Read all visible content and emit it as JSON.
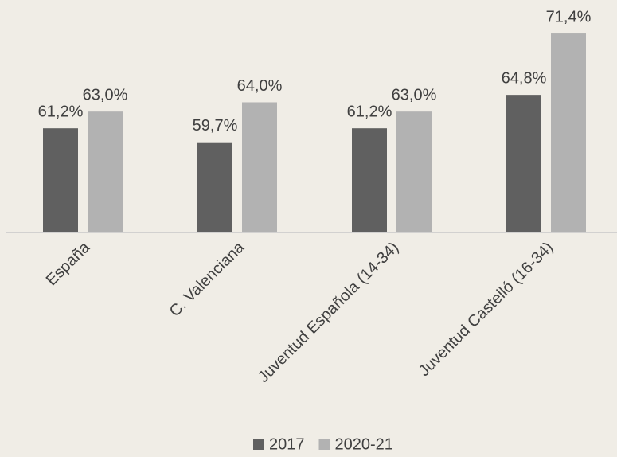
{
  "chart_data": {
    "type": "bar",
    "categories": [
      "España",
      "C. Valenciana",
      "Juventud Española (14-34)",
      "Juventud Castelló (16-34)"
    ],
    "series": [
      {
        "name": "2017",
        "color": "#606060",
        "values": [
          61.2,
          59.7,
          61.2,
          64.8
        ],
        "value_labels": [
          "61,2%",
          "59,7%",
          "61,2%",
          "64,8%"
        ]
      },
      {
        "name": "2020-21",
        "color": "#b2b2b2",
        "values": [
          63.0,
          64.0,
          63.0,
          71.4
        ],
        "value_labels": [
          "63,0%",
          "64,0%",
          "63,0%",
          "71,4%"
        ]
      }
    ],
    "ylim": [
      50,
      75
    ],
    "legend": "bottom"
  }
}
